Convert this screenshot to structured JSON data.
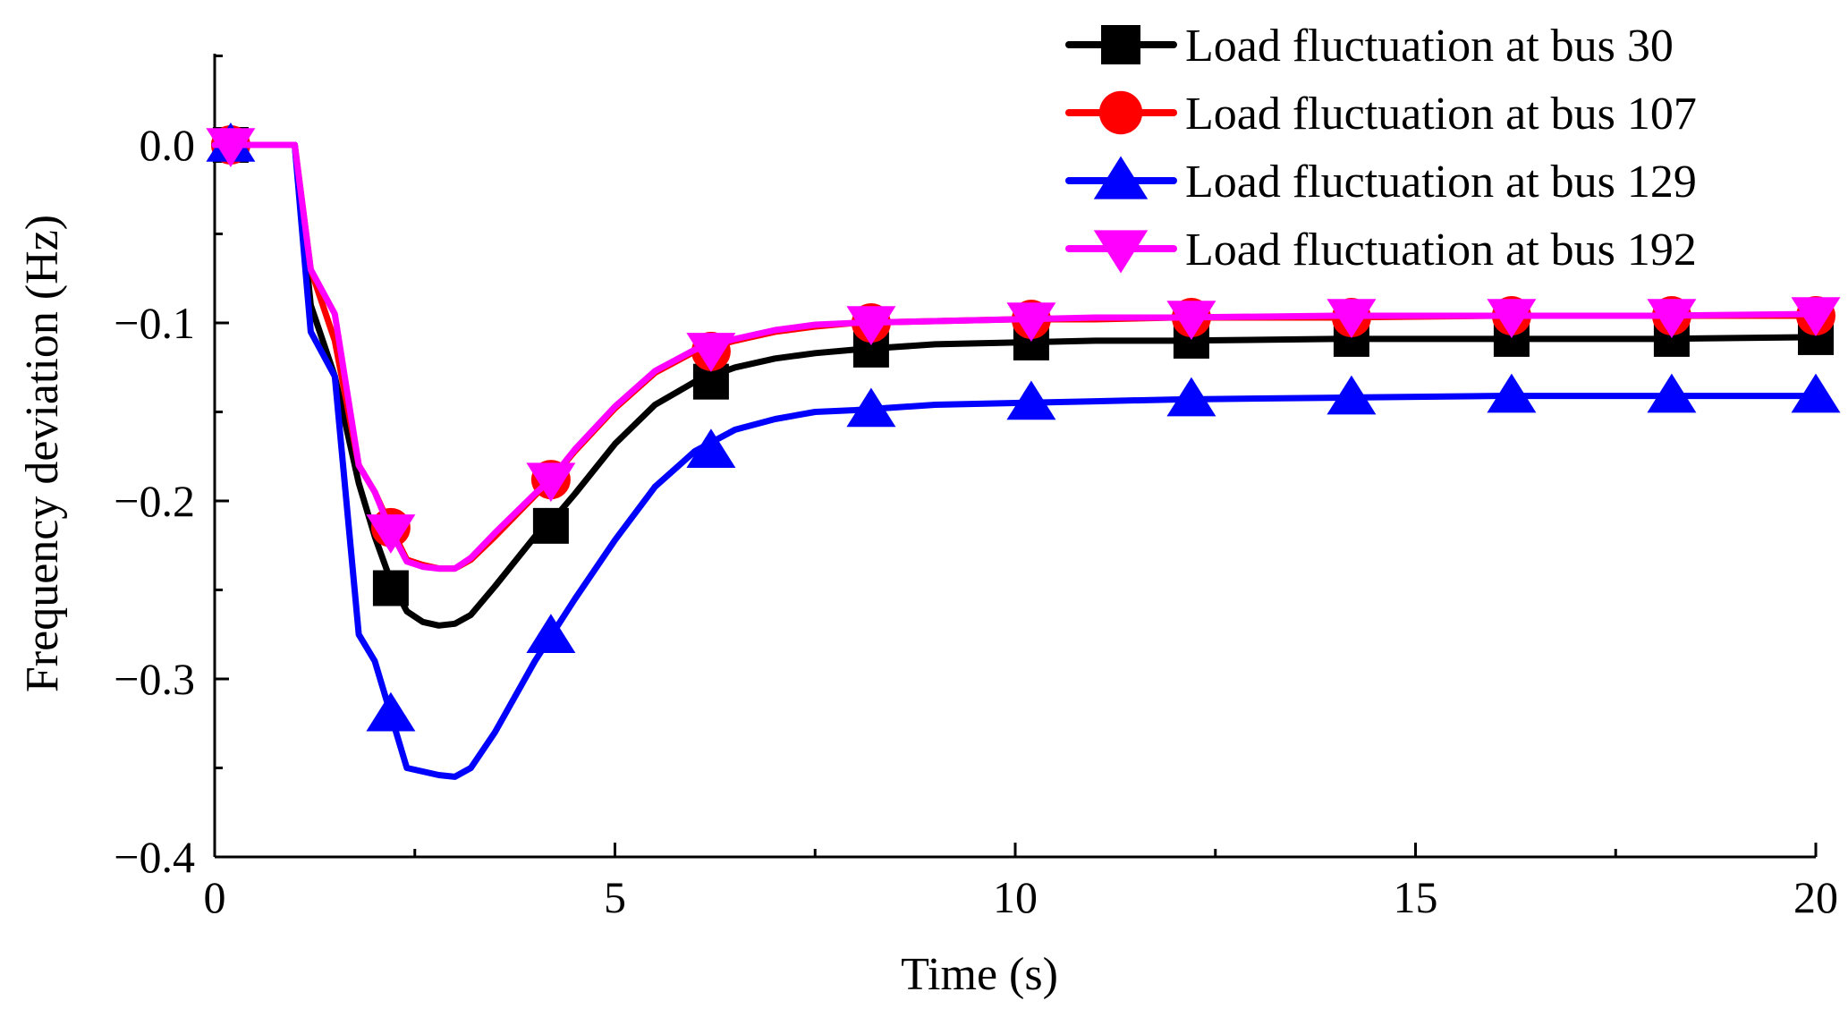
{
  "chart_data": {
    "type": "line",
    "xlabel": "Time (s)",
    "ylabel": "Frequency deviation (Hz)",
    "xlim": [
      0,
      20
    ],
    "ylim": [
      -0.4,
      0.05
    ],
    "x_ticks": [
      "0",
      "5",
      "10",
      "15",
      "20"
    ],
    "y_ticks": [
      "0.0",
      "−0.1",
      "−0.2",
      "−0.3",
      "−0.4"
    ],
    "grid": false,
    "legend_position": "top-right",
    "series": [
      {
        "name": "Load fluctuation at bus 30",
        "color": "#000000",
        "marker": "square",
        "x": [
          0,
          1,
          1.2,
          1.5,
          1.8,
          2.0,
          2.2,
          2.4,
          2.6,
          2.8,
          3.0,
          3.2,
          3.5,
          4.0,
          4.2,
          4.5,
          5.0,
          5.5,
          6.0,
          6.5,
          7.0,
          7.5,
          8.0,
          9.0,
          10.0,
          11.0,
          12.0,
          14.0,
          16.0,
          18.0,
          20.0
        ],
        "y": [
          0,
          0,
          -0.09,
          -0.13,
          -0.19,
          -0.22,
          -0.245,
          -0.262,
          -0.268,
          -0.27,
          -0.269,
          -0.264,
          -0.248,
          -0.22,
          -0.212,
          -0.196,
          -0.168,
          -0.146,
          -0.133,
          -0.125,
          -0.12,
          -0.117,
          -0.115,
          -0.112,
          -0.111,
          -0.11,
          -0.11,
          -0.109,
          -0.109,
          -0.109,
          -0.108
        ],
        "marker_x": [
          0.2,
          2.2,
          4.2,
          6.2,
          8.2,
          10.2,
          12.2,
          14.2,
          16.2,
          18.2,
          20.0
        ],
        "marker_y": [
          0,
          -0.249,
          -0.214,
          -0.133,
          -0.115,
          -0.111,
          -0.11,
          -0.109,
          -0.109,
          -0.109,
          -0.108
        ]
      },
      {
        "name": "Load fluctuation at bus 107",
        "color": "#ff0000",
        "marker": "circle",
        "x": [
          0,
          1,
          1.2,
          1.5,
          1.8,
          2.0,
          2.2,
          2.4,
          2.6,
          2.8,
          3.0,
          3.2,
          3.5,
          4.0,
          4.2,
          4.5,
          5.0,
          5.5,
          6.0,
          6.5,
          7.0,
          7.5,
          8.0,
          9.0,
          10.0,
          11.0,
          12.0,
          14.0,
          16.0,
          18.0,
          20.0
        ],
        "y": [
          0,
          0,
          -0.07,
          -0.11,
          -0.18,
          -0.195,
          -0.215,
          -0.233,
          -0.236,
          -0.238,
          -0.238,
          -0.233,
          -0.22,
          -0.197,
          -0.188,
          -0.172,
          -0.148,
          -0.128,
          -0.116,
          -0.11,
          -0.105,
          -0.102,
          -0.1,
          -0.099,
          -0.098,
          -0.098,
          -0.097,
          -0.097,
          -0.096,
          -0.096,
          -0.096
        ],
        "marker_x": [
          0.2,
          2.2,
          4.2,
          6.2,
          8.2,
          10.2,
          12.2,
          14.2,
          16.2,
          18.2,
          20.0
        ],
        "marker_y": [
          0,
          -0.215,
          -0.188,
          -0.116,
          -0.1,
          -0.098,
          -0.097,
          -0.097,
          -0.096,
          -0.096,
          -0.096
        ]
      },
      {
        "name": "Load fluctuation at bus 129",
        "color": "#0000ff",
        "marker": "triangle-up",
        "x": [
          0,
          1,
          1.2,
          1.5,
          1.8,
          2.0,
          2.2,
          2.4,
          2.6,
          2.8,
          3.0,
          3.2,
          3.5,
          4.0,
          4.2,
          4.5,
          5.0,
          5.5,
          6.0,
          6.5,
          7.0,
          7.5,
          8.0,
          9.0,
          10.0,
          11.0,
          12.0,
          14.0,
          16.0,
          18.0,
          20.0
        ],
        "y": [
          0,
          0,
          -0.105,
          -0.13,
          -0.275,
          -0.29,
          -0.32,
          -0.35,
          -0.352,
          -0.354,
          -0.355,
          -0.35,
          -0.33,
          -0.29,
          -0.276,
          -0.255,
          -0.222,
          -0.192,
          -0.172,
          -0.16,
          -0.154,
          -0.15,
          -0.149,
          -0.146,
          -0.145,
          -0.144,
          -0.143,
          -0.142,
          -0.141,
          -0.141,
          -0.141
        ],
        "marker_x": [
          0.2,
          2.2,
          4.2,
          6.2,
          8.2,
          10.2,
          12.2,
          14.2,
          16.2,
          18.2,
          20.0
        ],
        "marker_y": [
          0,
          -0.32,
          -0.276,
          -0.172,
          -0.149,
          -0.145,
          -0.143,
          -0.142,
          -0.141,
          -0.141,
          -0.141
        ]
      },
      {
        "name": "Load fluctuation at bus 192",
        "color": "#ff00ff",
        "marker": "triangle-down",
        "x": [
          0,
          1,
          1.2,
          1.5,
          1.8,
          2.0,
          2.2,
          2.4,
          2.6,
          2.8,
          3.0,
          3.2,
          3.5,
          4.0,
          4.2,
          4.5,
          5.0,
          5.5,
          6.0,
          6.5,
          7.0,
          7.5,
          8.0,
          9.0,
          10.0,
          11.0,
          12.0,
          14.0,
          16.0,
          18.0,
          20.0
        ],
        "y": [
          0,
          0,
          -0.07,
          -0.095,
          -0.18,
          -0.195,
          -0.217,
          -0.234,
          -0.237,
          -0.238,
          -0.238,
          -0.232,
          -0.218,
          -0.196,
          -0.188,
          -0.171,
          -0.147,
          -0.127,
          -0.115,
          -0.109,
          -0.104,
          -0.101,
          -0.1,
          -0.099,
          -0.098,
          -0.097,
          -0.097,
          -0.096,
          -0.096,
          -0.096,
          -0.095
        ],
        "marker_x": [
          0.2,
          2.2,
          4.2,
          6.2,
          8.2,
          10.2,
          12.2,
          14.2,
          16.2,
          18.2,
          20.0
        ],
        "marker_y": [
          0,
          -0.217,
          -0.188,
          -0.115,
          -0.1,
          -0.098,
          -0.097,
          -0.096,
          -0.096,
          -0.096,
          -0.095
        ]
      }
    ]
  }
}
